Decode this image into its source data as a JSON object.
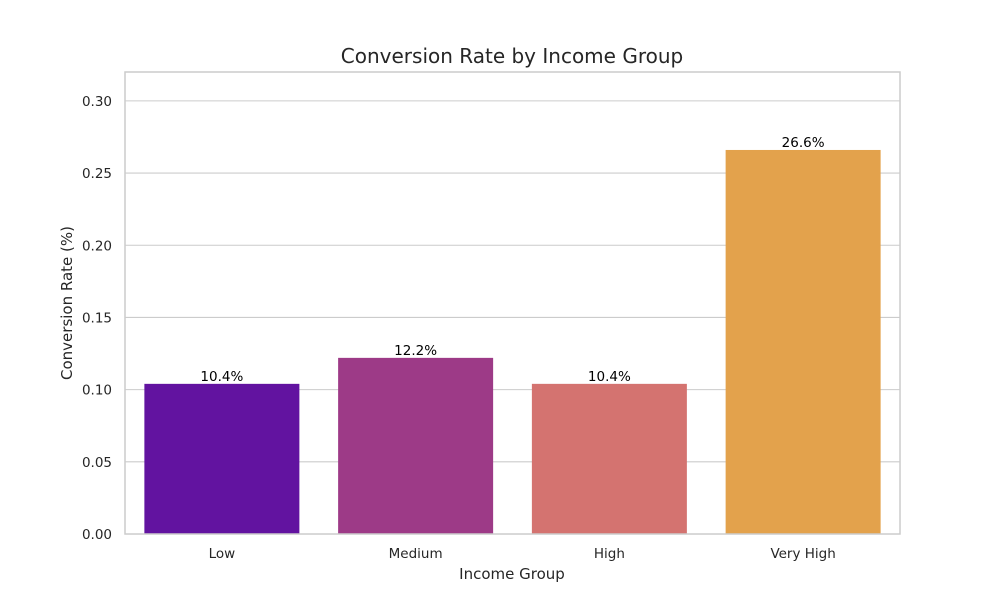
{
  "chart_data": {
    "type": "bar",
    "title": "Conversion Rate by Income Group",
    "xlabel": "Income Group",
    "ylabel": "Conversion Rate (%)",
    "categories": [
      "Low",
      "Medium",
      "High",
      "Very High"
    ],
    "values": [
      0.104,
      0.122,
      0.104,
      0.266
    ],
    "data_labels": [
      "10.4%",
      "12.2%",
      "10.4%",
      "26.6%"
    ],
    "bar_colors": [
      "#6213a0",
      "#9d3a87",
      "#d47370",
      "#e3a24c"
    ],
    "ylim": [
      0,
      0.32
    ],
    "yticks": [
      0.0,
      0.05,
      0.1,
      0.15,
      0.2,
      0.25,
      0.3
    ],
    "ytick_labels": [
      "0.00",
      "0.05",
      "0.10",
      "0.15",
      "0.20",
      "0.25",
      "0.30"
    ],
    "grid": true,
    "grid_axis": "y",
    "legend": "none"
  }
}
